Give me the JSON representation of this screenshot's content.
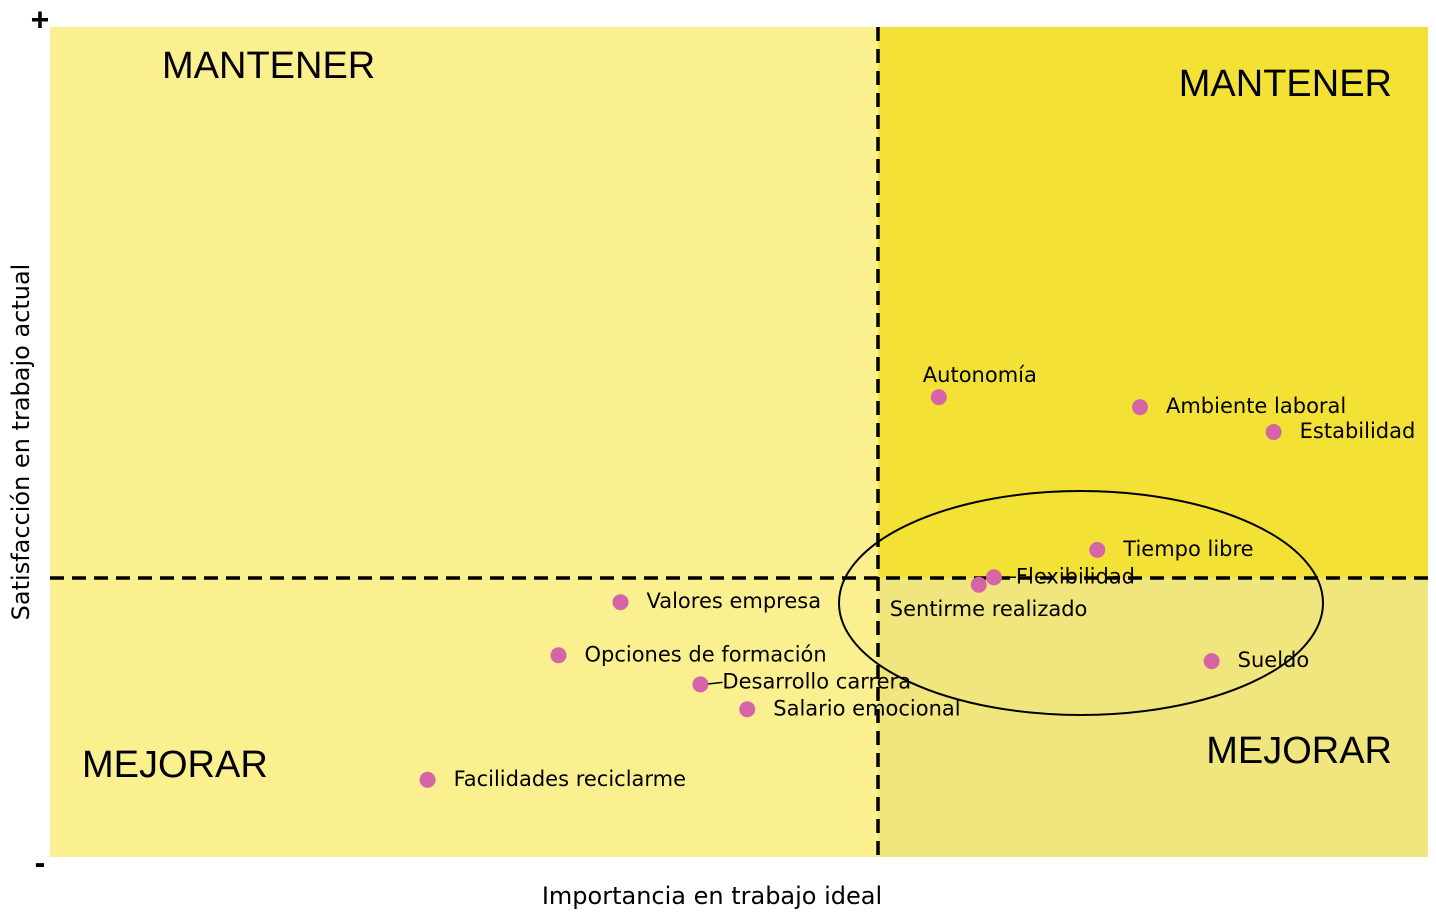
{
  "chart_data": {
    "type": "scatter",
    "xlabel": "Importancia en trabajo ideal",
    "ylabel": "Satisfacción en trabajo actual",
    "y_top_label": "+",
    "y_bottom_label": "-",
    "quadrant_labels": [
      "MANTENER",
      "MANTENER",
      "MEJORAR",
      "MEJORAR"
    ],
    "xlim": [
      0,
      10
    ],
    "ylim": [
      0,
      10
    ],
    "color": "#d665a8",
    "point_labels": [
      "Autonomía",
      "Ambiente laboral",
      "Estabilidad",
      "Tiempo libre",
      "Flexibilidad",
      "Sentirme realizado",
      "Sueldo",
      "Valores empresa",
      "Opciones de formación",
      "Desarrollo carrera",
      "Salario emocional",
      "Facilidades reciclarme"
    ],
    "x": [
      6.45,
      7.91,
      8.88,
      7.6,
      6.85,
      6.74,
      8.43,
      4.14,
      3.69,
      4.72,
      5.06,
      2.74
    ],
    "values": [
      5.54,
      5.42,
      5.12,
      3.7,
      3.37,
      3.28,
      2.36,
      3.07,
      2.43,
      2.08,
      1.78,
      0.93
    ]
  }
}
